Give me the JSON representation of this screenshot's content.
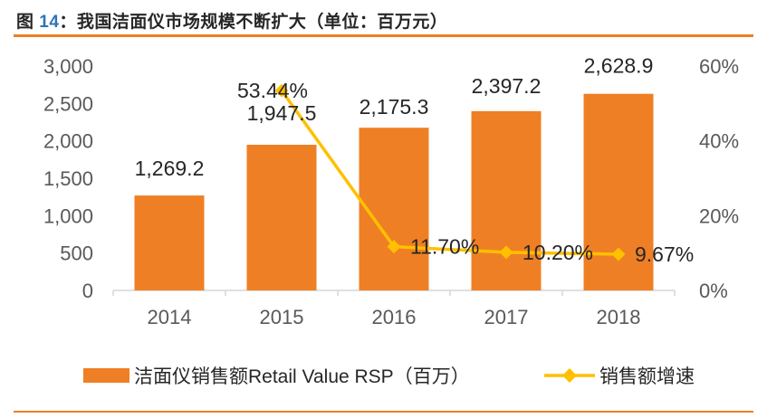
{
  "header": {
    "prefix": "图 ",
    "number": "14",
    "suffix": "：我国洁面仪市场规模不断扩大（单位：百万元）"
  },
  "colors": {
    "bar": "#EF7F24",
    "line": "#FFC000",
    "rule_orange": "#EE7F22",
    "axis_line": "#D6D6D6",
    "axis_text": "#595959",
    "data_label": "#262626",
    "title_number_blue": "#2E74B5"
  },
  "chart_data": {
    "type": "bar",
    "subtype": "bar-with-line-overlay",
    "categories": [
      "2014",
      "2015",
      "2016",
      "2017",
      "2018"
    ],
    "series": [
      {
        "name": "洁面仪销售额Retail Value RSP（百万）",
        "type": "bar",
        "axis": "left",
        "color": "#EF7F24",
        "values": [
          1269.2,
          1947.5,
          2175.3,
          2397.2,
          2628.9
        ],
        "labels": [
          "1,269.2",
          "1,947.5",
          "2,175.3",
          "2,397.2",
          "2,628.9"
        ]
      },
      {
        "name": "销售额增速",
        "type": "line",
        "axis": "right",
        "color": "#FFC000",
        "values": [
          null,
          53.44,
          11.7,
          10.2,
          9.67
        ],
        "labels": [
          null,
          "53.44%",
          "11.70%",
          "10.20%",
          "9.67%"
        ]
      }
    ],
    "left_axis": {
      "min": 0,
      "max": 3000,
      "ticks": [
        "3,000",
        "2,500",
        "2,000",
        "1,500",
        "1,000",
        "500",
        "0"
      ]
    },
    "right_axis": {
      "min": 0,
      "max": 60,
      "ticks": [
        "60%",
        "40%",
        "20%",
        "0%"
      ]
    },
    "grid": false,
    "legend_position": "bottom",
    "title": "我国洁面仪市场规模不断扩大（单位：百万元）"
  }
}
